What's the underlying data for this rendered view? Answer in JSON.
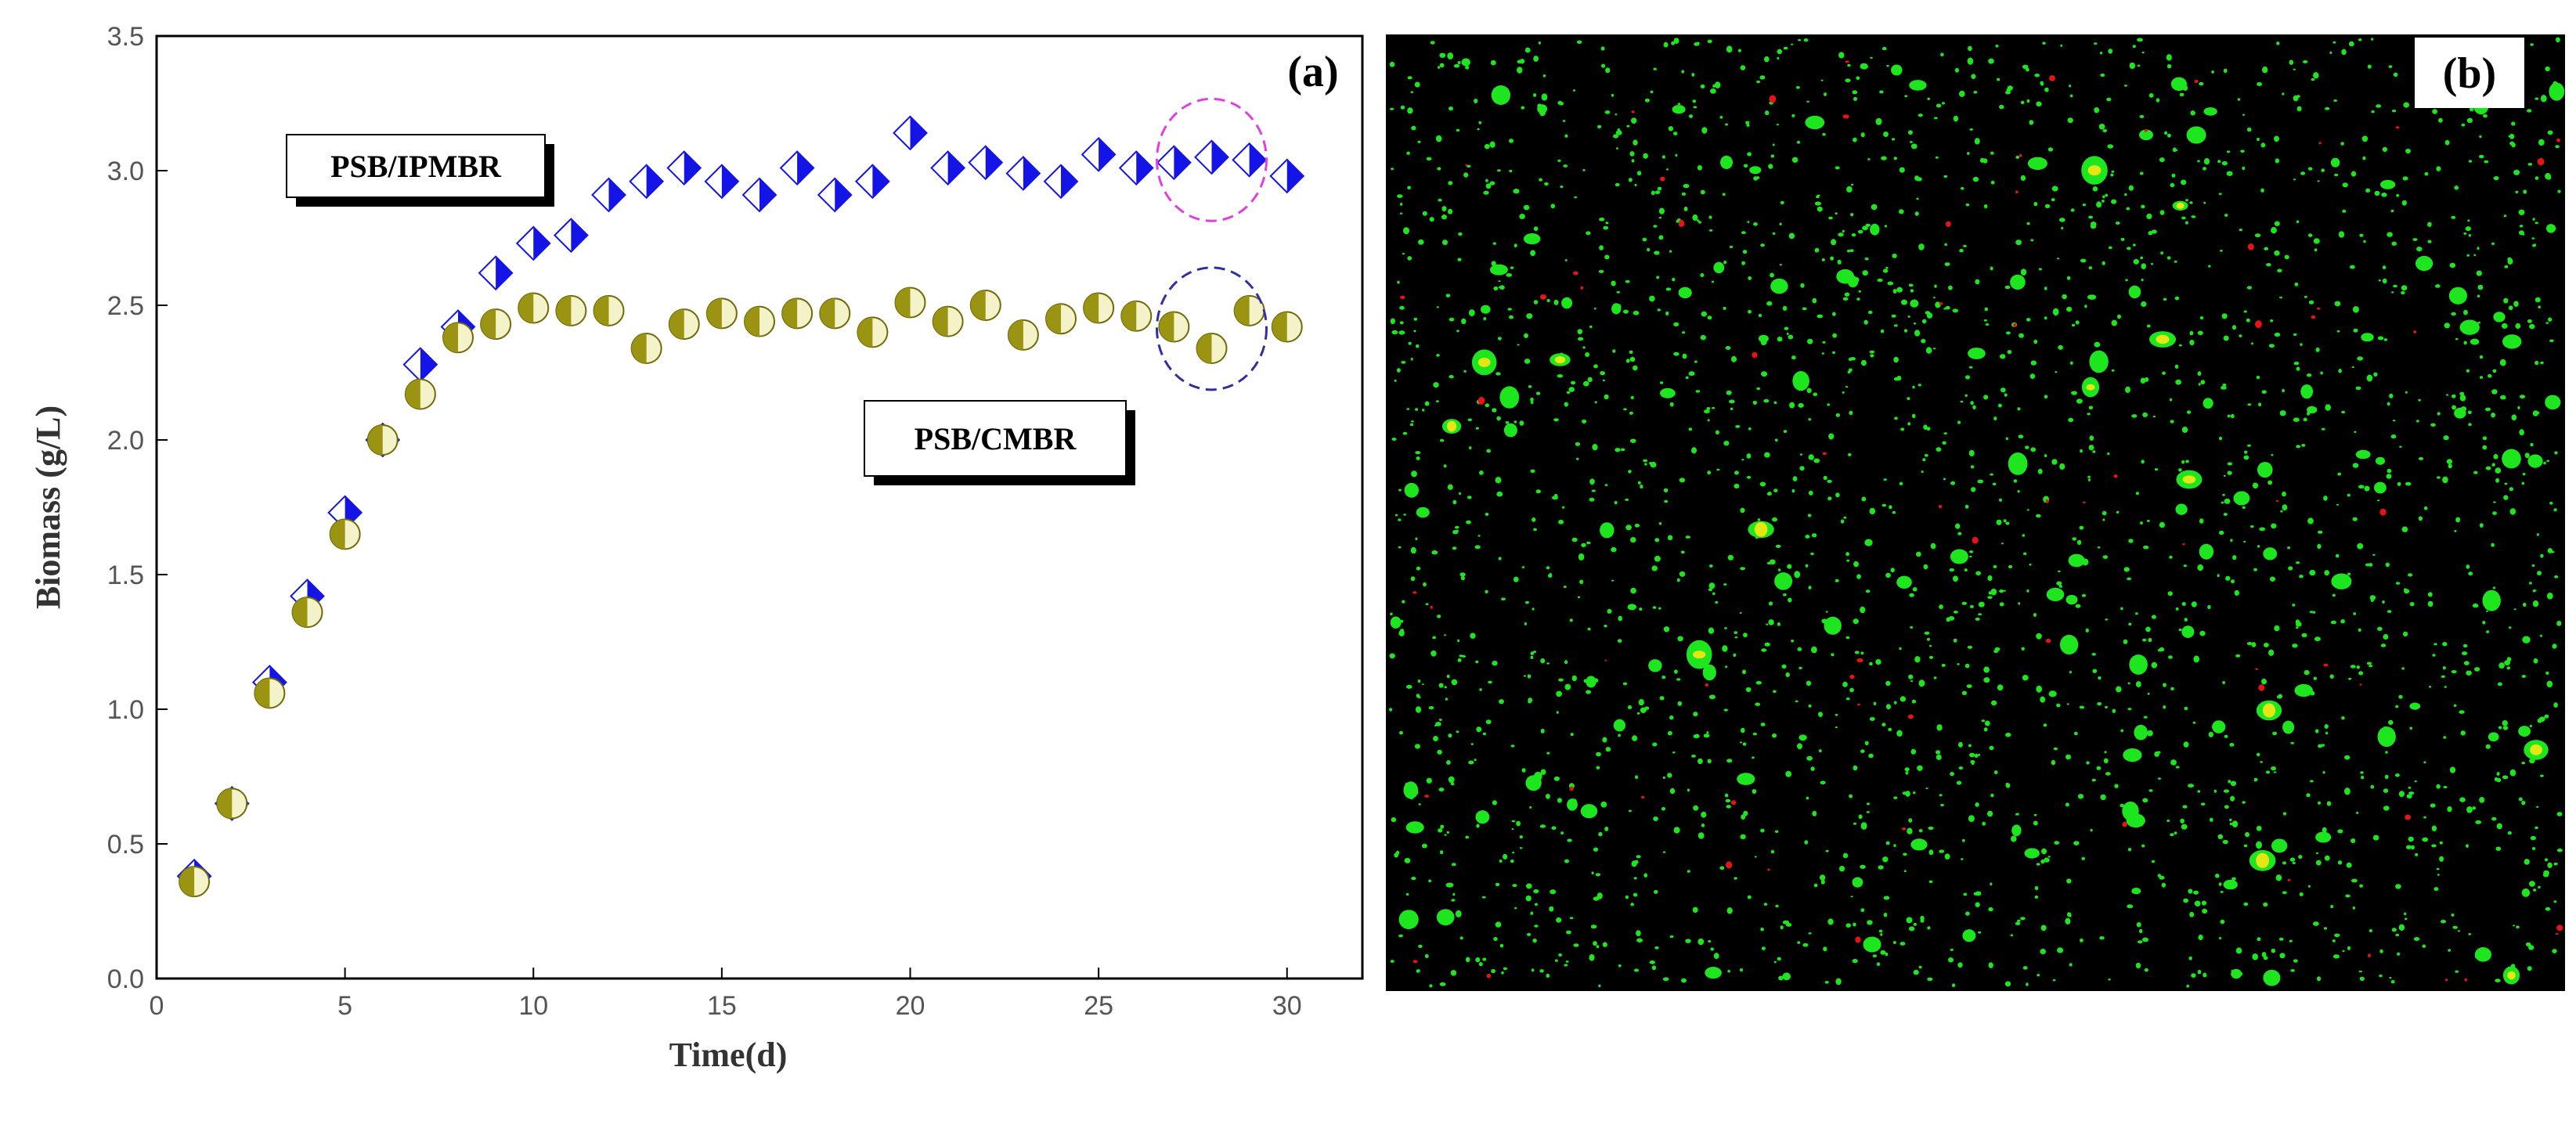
{
  "chart_data": [
    {
      "type": "scatter",
      "panel_label": "(a)",
      "xlabel": "Time(d)",
      "ylabel": "Biomass (g/L)",
      "xlim": [
        0,
        32
      ],
      "ylim": [
        0,
        3.5
      ],
      "xticks": [
        "0",
        "5",
        "10",
        "15",
        "20",
        "25",
        "30"
      ],
      "yticks": [
        "0.0",
        "0.5",
        "1.0",
        "1.5",
        "2.0",
        "2.5",
        "3.0",
        "3.5"
      ],
      "grid": false,
      "legend": "inline labels",
      "series": [
        {
          "name": "PSB/IPMBR",
          "marker": "half-filled diamond",
          "color": "#1414e6",
          "x": [
            1,
            2,
            3,
            4,
            5,
            6,
            7,
            8,
            9,
            10,
            11,
            12,
            13,
            14,
            15,
            16,
            17,
            18,
            19,
            20,
            21,
            22,
            23,
            24,
            25,
            26,
            27,
            28,
            29,
            30
          ],
          "y": [
            0.38,
            0.65,
            1.1,
            1.42,
            1.73,
            2.0,
            2.28,
            2.42,
            2.62,
            2.73,
            2.76,
            2.91,
            2.96,
            3.01,
            2.96,
            2.91,
            3.01,
            2.91,
            2.96,
            3.14,
            3.01,
            3.03,
            2.99,
            2.96,
            3.06,
            3.01,
            3.03,
            3.05,
            3.04,
            2.98
          ]
        },
        {
          "name": "PSB/CMBR",
          "marker": "half-filled circle",
          "color": "#9b9412",
          "x": [
            1,
            2,
            3,
            4,
            5,
            6,
            7,
            8,
            9,
            10,
            11,
            12,
            13,
            14,
            15,
            16,
            17,
            18,
            19,
            20,
            21,
            22,
            23,
            24,
            25,
            26,
            27,
            28,
            29,
            30
          ],
          "y": [
            0.36,
            0.65,
            1.06,
            1.36,
            1.65,
            2.0,
            2.17,
            2.38,
            2.43,
            2.49,
            2.48,
            2.48,
            2.34,
            2.43,
            2.47,
            2.44,
            2.47,
            2.47,
            2.4,
            2.51,
            2.44,
            2.5,
            2.39,
            2.45,
            2.49,
            2.46,
            2.42,
            2.34,
            2.48,
            2.42
          ]
        }
      ],
      "annotations": [
        {
          "type": "dashed-circle",
          "target": "PSB/IPMBR",
          "x_range": [
            27,
            29
          ],
          "color": "#e040e0"
        },
        {
          "type": "dashed-circle",
          "target": "PSB/CMBR",
          "x_range": [
            27,
            29
          ],
          "color": "#3030a0"
        }
      ]
    }
  ],
  "micrograph": {
    "panel_label": "(b)",
    "background": "#000000",
    "colors": {
      "live": "#1ee61e",
      "dead": "#e61414",
      "overlap": "#e6e614"
    }
  }
}
